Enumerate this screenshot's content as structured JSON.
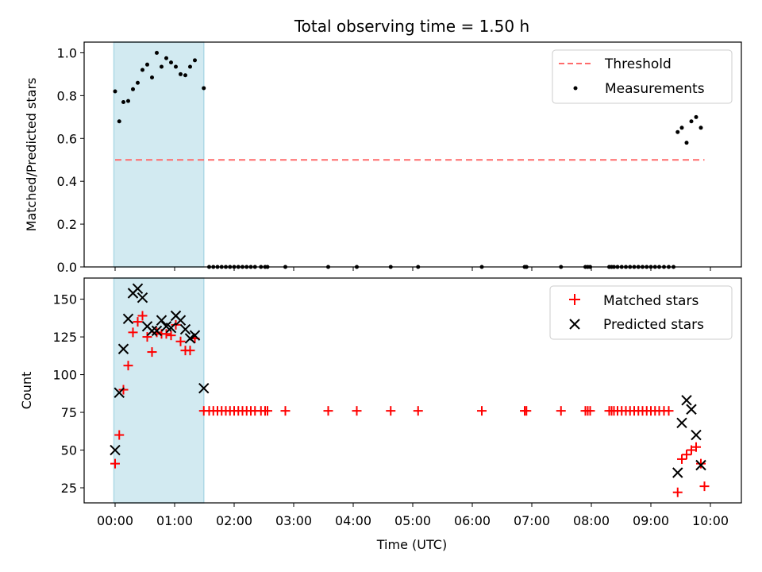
{
  "chart_data": [
    {
      "type": "scatter",
      "title": "Total observing time = 1.50 h",
      "ylabel": "Matched/Predicted stars",
      "xlabel": "",
      "xlim": [
        -0.52,
        10.52
      ],
      "ylim": [
        0,
        1.05
      ],
      "yticks": [
        0.0,
        0.2,
        0.4,
        0.6,
        0.8,
        1.0
      ],
      "ytick_labels": [
        "0.0",
        "0.2",
        "0.4",
        "0.6",
        "0.8",
        "1.0"
      ],
      "grid": false,
      "legend_position": "upper right",
      "shaded_span": {
        "x0": -0.02,
        "x1": 1.49,
        "color": "#add8e6"
      },
      "threshold": {
        "name": "Threshold",
        "y": 0.5,
        "x0": 0.0,
        "x1": 9.9,
        "color": "#ff6b6b"
      },
      "series": [
        {
          "name": "Measurements",
          "color": "#000000",
          "x": [
            0.0,
            0.07,
            0.14,
            0.22,
            0.3,
            0.38,
            0.46,
            0.54,
            0.62,
            0.7,
            0.78,
            0.86,
            0.94,
            1.02,
            1.1,
            1.18,
            1.26,
            1.34,
            1.49,
            1.58,
            1.65,
            1.72,
            1.79,
            1.86,
            1.93,
            2.0,
            2.07,
            2.14,
            2.21,
            2.28,
            2.35,
            2.45,
            2.52,
            2.56,
            2.86,
            3.58,
            4.06,
            4.63,
            5.09,
            6.16,
            6.88,
            6.91,
            7.49,
            7.9,
            7.94,
            7.98,
            8.3,
            8.34,
            8.38,
            8.44,
            8.51,
            8.58,
            8.65,
            8.72,
            8.79,
            8.86,
            8.93,
            9.0,
            9.07,
            9.14,
            9.22,
            9.3,
            9.38,
            9.45,
            9.52,
            9.6,
            9.68,
            9.76,
            9.84
          ],
          "y": [
            0.82,
            0.68,
            0.77,
            0.775,
            0.83,
            0.86,
            0.92,
            0.945,
            0.885,
            1.0,
            0.935,
            0.975,
            0.955,
            0.935,
            0.9,
            0.895,
            0.935,
            0.965,
            0.835,
            0,
            0,
            0,
            0,
            0,
            0,
            0,
            0,
            0,
            0,
            0,
            0,
            0,
            0,
            0,
            0,
            0,
            0,
            0,
            0,
            0,
            0,
            0,
            0,
            0,
            0,
            0,
            0,
            0,
            0,
            0,
            0,
            0,
            0,
            0,
            0,
            0,
            0,
            0,
            0,
            0,
            0,
            0,
            0,
            0.63,
            0.65,
            0.58,
            0.68,
            0.7,
            0.65
          ]
        }
      ]
    },
    {
      "type": "scatter",
      "title": "",
      "ylabel": "Count",
      "xlabel": "Time (UTC)",
      "xlim": [
        -0.52,
        10.52
      ],
      "ylim": [
        15,
        164
      ],
      "yticks": [
        25,
        50,
        75,
        100,
        125,
        150
      ],
      "ytick_labels": [
        "25",
        "50",
        "75",
        "100",
        "125",
        "150"
      ],
      "xticks": [
        0,
        1,
        2,
        3,
        4,
        5,
        6,
        7,
        8,
        9,
        10
      ],
      "xtick_labels": [
        "00:00",
        "01:00",
        "02:00",
        "03:00",
        "04:00",
        "05:00",
        "06:00",
        "07:00",
        "08:00",
        "09:00",
        "10:00"
      ],
      "grid": false,
      "legend_position": "upper right",
      "shaded_span": {
        "x0": -0.02,
        "x1": 1.49,
        "color": "#add8e6"
      },
      "series": [
        {
          "name": "Matched stars",
          "marker": "plus",
          "color": "#ff0000",
          "x": [
            0.0,
            0.07,
            0.14,
            0.22,
            0.3,
            0.38,
            0.46,
            0.54,
            0.62,
            0.7,
            0.78,
            0.86,
            0.94,
            1.02,
            1.1,
            1.18,
            1.26,
            1.34,
            1.49,
            1.58,
            1.65,
            1.72,
            1.79,
            1.86,
            1.93,
            2.0,
            2.07,
            2.14,
            2.21,
            2.28,
            2.35,
            2.45,
            2.52,
            2.56,
            2.86,
            3.58,
            4.06,
            4.63,
            5.09,
            6.16,
            6.88,
            6.91,
            7.49,
            7.9,
            7.94,
            7.98,
            8.3,
            8.34,
            8.38,
            8.44,
            8.51,
            8.58,
            8.65,
            8.72,
            8.79,
            8.86,
            8.93,
            9.0,
            9.07,
            9.14,
            9.22,
            9.3,
            9.45,
            9.52,
            9.6,
            9.68,
            9.76,
            9.84,
            9.9
          ],
          "y": [
            41,
            60,
            90,
            106,
            128,
            135,
            139,
            125,
            115,
            128,
            127,
            127,
            126,
            133,
            122,
            116,
            116,
            124,
            76,
            76,
            76,
            76,
            76,
            76,
            76,
            76,
            76,
            76,
            76,
            76,
            76,
            76,
            76,
            76,
            76,
            76,
            76,
            76,
            76,
            76,
            76,
            76,
            76,
            76,
            76,
            76,
            76,
            76,
            76,
            76,
            76,
            76,
            76,
            76,
            76,
            76,
            76,
            76,
            76,
            76,
            76,
            76,
            22,
            44,
            47,
            50,
            52,
            41,
            26
          ]
        },
        {
          "name": "Predicted stars",
          "marker": "x",
          "color": "#000000",
          "x": [
            0.0,
            0.07,
            0.14,
            0.22,
            0.3,
            0.38,
            0.46,
            0.54,
            0.62,
            0.7,
            0.78,
            0.86,
            0.94,
            1.02,
            1.1,
            1.18,
            1.26,
            1.34,
            1.49,
            9.45,
            9.52,
            9.6,
            9.68,
            9.76,
            9.84
          ],
          "y": [
            50,
            88,
            117,
            137,
            154,
            157,
            151,
            132,
            129,
            129,
            136,
            132,
            131,
            139,
            136,
            130,
            124,
            126,
            91,
            35,
            68,
            83,
            77,
            60,
            40
          ]
        }
      ]
    }
  ]
}
